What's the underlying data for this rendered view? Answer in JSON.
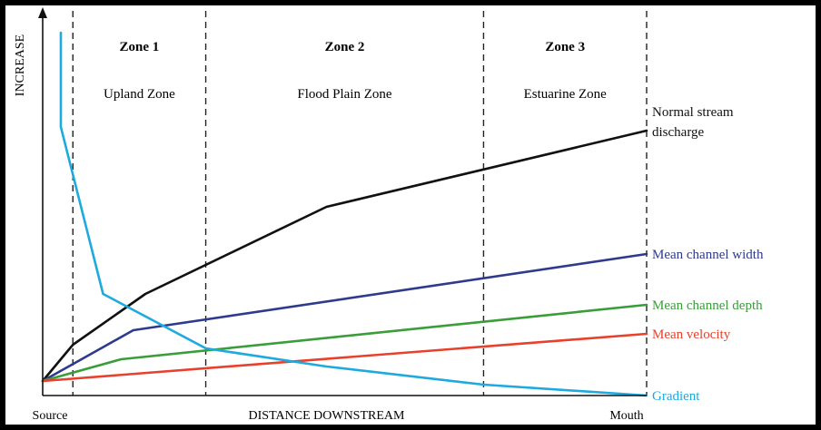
{
  "chart_data": {
    "type": "line",
    "title": "",
    "xlabel": "DISTANCE DOWNSTREAM",
    "ylabel": "INCREASE",
    "x_ticks": {
      "start": "Source",
      "end": "Mouth"
    },
    "xlim": [
      0,
      100
    ],
    "ylim": [
      0,
      100
    ],
    "grid": false,
    "zones": [
      {
        "title": "Zone  1",
        "subtitle": "Upland Zone",
        "from": 5,
        "to": 27
      },
      {
        "title": "Zone  2",
        "subtitle": "Flood Plain Zone",
        "from": 27,
        "to": 73
      },
      {
        "title": "Zone  3",
        "subtitle": "Estuarine Zone",
        "from": 73,
        "to": 100
      }
    ],
    "zone_boundaries": [
      5,
      27,
      73,
      100
    ],
    "series": [
      {
        "name": "Normal  stream discharge",
        "label_lines": [
          "Normal    stream",
          "discharge"
        ],
        "color": "#111111",
        "x": [
          0,
          4,
          5,
          17,
          47,
          100
        ],
        "y": [
          4,
          12,
          14,
          28,
          52,
          73
        ]
      },
      {
        "name": "Mean channel width",
        "label_lines": [
          "Mean channel width"
        ],
        "color": "#2e3a8c",
        "x": [
          0,
          15,
          100
        ],
        "y": [
          4,
          18,
          39
        ]
      },
      {
        "name": "Mean channel depth",
        "label_lines": [
          "Mean channel depth"
        ],
        "color": "#3a9d3a",
        "x": [
          0,
          13,
          100
        ],
        "y": [
          4,
          10,
          25
        ]
      },
      {
        "name": "Mean velocity",
        "label_lines": [
          "Mean velocity"
        ],
        "color": "#e8402a",
        "x": [
          0,
          100
        ],
        "y": [
          4,
          17
        ]
      },
      {
        "name": "Gradient",
        "label_lines": [
          "Gradient"
        ],
        "color": "#1eaadf",
        "x": [
          3,
          3,
          10,
          27,
          47,
          73,
          100
        ],
        "y": [
          100,
          74,
          28,
          13,
          8,
          3,
          0
        ]
      }
    ]
  }
}
